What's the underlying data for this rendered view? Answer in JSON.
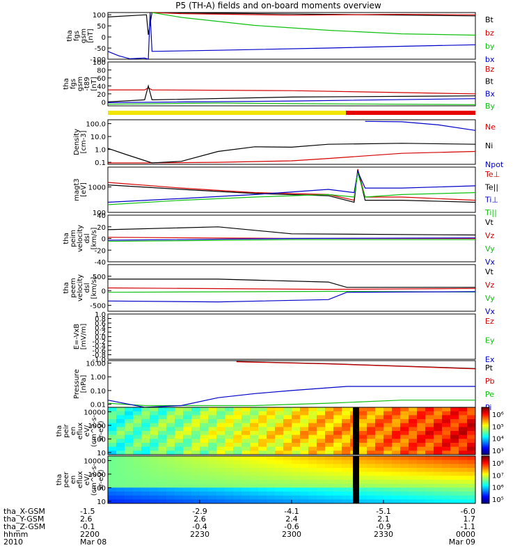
{
  "title": "P5 (TH-A) fields and on-board moments overview",
  "colors": {
    "red": "#d40000",
    "green": "#10c010",
    "blue": "#0000c8",
    "black": "#000000",
    "yellow": "#f2e600",
    "barRed": "#e60000"
  },
  "chart_data": [
    {
      "type": "line",
      "ylabel": [
        "tha",
        "fgs",
        "gsm",
        "[nT]"
      ],
      "ylim": [
        -100,
        110
      ],
      "yticks": [
        "100",
        "50",
        "0",
        "-50",
        "-100"
      ],
      "ytick_values": [
        100,
        50,
        0,
        -50,
        -100
      ],
      "series": [
        {
          "name": "Bt",
          "color": "#000000",
          "x": [
            0,
            0.105,
            0.11,
            0.12,
            1
          ],
          "values": [
            90,
            100,
            10,
            110,
            95
          ]
        },
        {
          "name": "bz",
          "color": "#d40000",
          "x": [
            0.12,
            0.2,
            0.5,
            0.8,
            1
          ],
          "values": [
            110,
            105,
            98,
            102,
            100
          ]
        },
        {
          "name": "by",
          "color": "#10c010",
          "x": [
            0.12,
            0.2,
            0.4,
            0.6,
            0.8,
            1
          ],
          "values": [
            110,
            88,
            52,
            30,
            14,
            8
          ]
        },
        {
          "name": "bx",
          "color": "#0000c8",
          "x": [
            0,
            0.03,
            0.06,
            0.1,
            0.11,
            0.115,
            0.12,
            0.3,
            0.6,
            0.8,
            1
          ],
          "values": [
            -65,
            -85,
            -98,
            -95,
            -100,
            110,
            -65,
            -60,
            -50,
            -42,
            -35
          ]
        }
      ]
    },
    {
      "type": "line",
      "ylabel": [
        "tha",
        "fgs",
        "gsm",
        "-t89",
        "[nT]"
      ],
      "ylim": [
        -10,
        100
      ],
      "yticks": [
        "100",
        "80",
        "60",
        "40",
        "20",
        "0"
      ],
      "ytick_values": [
        100,
        80,
        60,
        40,
        20,
        0
      ],
      "series": [
        {
          "name": "Bz",
          "color": "#d40000",
          "x": [
            0,
            0.1,
            0.11,
            0.12,
            0.5,
            1
          ],
          "values": [
            30,
            30,
            35,
            30,
            28,
            20
          ]
        },
        {
          "name": "Bt",
          "color": "#000000",
          "x": [
            0,
            0.1,
            0.11,
            0.12,
            0.5,
            1
          ],
          "values": [
            0,
            5,
            40,
            5,
            12,
            15
          ]
        },
        {
          "name": "Bx",
          "color": "#0000c8",
          "x": [
            0,
            0.5,
            1
          ],
          "values": [
            -2,
            2,
            8
          ]
        },
        {
          "name": "By",
          "color": "#10c010",
          "x": [
            0,
            0.3,
            0.6,
            1
          ],
          "values": [
            -6,
            -3,
            -5,
            -7
          ]
        }
      ]
    },
    {
      "type": "line",
      "ylabel": [
        "Density",
        "[cm-3]"
      ],
      "yscale": "log",
      "ylim": [
        0.07,
        200
      ],
      "yticks": [
        "100.0",
        "10.0",
        "1.0",
        "0.1"
      ],
      "ytick_values": [
        100,
        10,
        1,
        0.1
      ],
      "series": [
        {
          "name": "Ne",
          "color": "#d40000",
          "x": [
            0,
            0.1,
            0.3,
            0.5,
            0.6,
            0.8,
            1
          ],
          "values": [
            0.09,
            0.09,
            0.1,
            0.13,
            0.2,
            0.5,
            0.7
          ]
        },
        {
          "name": "Ni",
          "color": "#000000",
          "x": [
            0,
            0.05,
            0.12,
            0.2,
            0.3,
            0.4,
            0.5,
            0.6,
            0.8,
            1
          ],
          "values": [
            1.2,
            0.4,
            0.09,
            0.12,
            0.7,
            1.6,
            1.5,
            2.5,
            3.0,
            2.5
          ]
        },
        {
          "name": "Npot",
          "color": "#0000c8",
          "x": [
            0.7,
            0.8,
            0.9,
            1
          ],
          "values": [
            150,
            140,
            80,
            30
          ]
        }
      ]
    },
    {
      "type": "line",
      "ylabel": [
        "magt3",
        "[eV]"
      ],
      "yscale": "log",
      "ylim": [
        100,
        6000
      ],
      "yticks": [
        "1000",
        "100"
      ],
      "ytick_values": [
        1000,
        100
      ],
      "series": [
        {
          "name": "Te⊥",
          "color": "#d40000",
          "x": [
            0,
            0.2,
            0.4,
            0.6,
            0.67,
            0.68,
            0.7,
            0.8,
            1
          ],
          "values": [
            1500,
            900,
            600,
            500,
            300,
            5000,
            400,
            400,
            300
          ]
        },
        {
          "name": "Te||",
          "color": "#000000",
          "x": [
            0,
            0.2,
            0.4,
            0.6,
            0.67,
            0.68,
            0.7,
            0.8,
            1
          ],
          "values": [
            1200,
            800,
            550,
            450,
            250,
            4500,
            300,
            300,
            250
          ]
        },
        {
          "name": "Ti⊥",
          "color": "#0000c8",
          "x": [
            0,
            0.2,
            0.4,
            0.6,
            0.67,
            0.68,
            0.7,
            0.8,
            1
          ],
          "values": [
            250,
            350,
            500,
            800,
            600,
            4000,
            900,
            900,
            1100
          ]
        },
        {
          "name": "Ti||",
          "color": "#10c010",
          "x": [
            0,
            0.2,
            0.4,
            0.6,
            0.67,
            0.68,
            0.7,
            0.8,
            1
          ],
          "values": [
            200,
            300,
            400,
            500,
            400,
            3500,
            400,
            500,
            600
          ]
        }
      ]
    },
    {
      "type": "line",
      "ylabel": [
        "tha",
        "peim",
        "velocity",
        "dsl",
        "[km/s]"
      ],
      "ylim": [
        -40,
        40
      ],
      "yticks": [
        "40",
        "20",
        "0",
        "-20",
        "-40"
      ],
      "ytick_values": [
        40,
        20,
        0,
        -20,
        -40
      ],
      "series": [
        {
          "name": "Vt",
          "color": "#000000",
          "x": [
            0,
            0.3,
            0.5,
            1
          ],
          "values": [
            15,
            20,
            8,
            6
          ]
        },
        {
          "name": "Vz",
          "color": "#d40000",
          "x": [
            0,
            0.5,
            1
          ],
          "values": [
            2,
            0,
            0
          ]
        },
        {
          "name": "Vy",
          "color": "#10c010",
          "x": [
            0,
            0.5,
            1
          ],
          "values": [
            -5,
            -2,
            -2
          ]
        },
        {
          "name": "Vx",
          "color": "#0000c8",
          "x": [
            0,
            0.5,
            1
          ],
          "values": [
            -3,
            0,
            1
          ]
        }
      ]
    },
    {
      "type": "line",
      "ylabel": [
        "tha",
        "peem",
        "velocity",
        "dsl",
        "[km/s]"
      ],
      "ylim": [
        -700,
        900
      ],
      "yticks": [
        "500",
        "0",
        "-500"
      ],
      "ytick_values": [
        500,
        0,
        -500
      ],
      "series": [
        {
          "name": "Vt",
          "color": "#000000",
          "x": [
            0,
            0.3,
            0.6,
            0.65,
            1
          ],
          "values": [
            400,
            400,
            300,
            120,
            120
          ]
        },
        {
          "name": "Vz",
          "color": "#d40000",
          "x": [
            0,
            0.6,
            1
          ],
          "values": [
            100,
            50,
            80
          ]
        },
        {
          "name": "Vy",
          "color": "#10c010",
          "x": [
            0,
            0.6,
            1
          ],
          "values": [
            -50,
            -20,
            -40
          ]
        },
        {
          "name": "Vx",
          "color": "#0000c8",
          "x": [
            0,
            0.3,
            0.6,
            0.65,
            1
          ],
          "values": [
            -350,
            -380,
            -300,
            -50,
            -30
          ]
        }
      ]
    },
    {
      "type": "line",
      "ylabel": [
        "E=-VxB",
        "[mV/m]"
      ],
      "ylim": [
        -1.0,
        1.0
      ],
      "yticks": [
        "1.0",
        "0.8",
        "0.6",
        "0.4",
        "0.2",
        "0.0",
        "-0.2",
        "-0.4",
        "-0.6",
        "-0.8",
        "-1.0"
      ],
      "ytick_values": [
        1.0,
        0.8,
        0.6,
        0.4,
        0.2,
        0.0,
        -0.2,
        -0.4,
        -0.6,
        -0.8,
        -1.0
      ],
      "series": [
        {
          "name": "Ez",
          "color": "#d40000",
          "x": [],
          "values": []
        },
        {
          "name": "Ey",
          "color": "#10c010",
          "x": [],
          "values": []
        },
        {
          "name": "Ex",
          "color": "#0000c8",
          "x": [],
          "values": []
        }
      ]
    },
    {
      "type": "line",
      "ylabel": [
        "Pressure",
        "[nPa]"
      ],
      "yscale": "log",
      "ylim": [
        0.006,
        15
      ],
      "yticks": [
        "10.00",
        "1.00",
        "0.10",
        "0.01"
      ],
      "ytick_values": [
        10,
        1,
        0.1,
        0.01
      ],
      "series": [
        {
          "name": "Pt",
          "color": "#000000",
          "x": [
            0.35,
            0.6,
            0.8,
            1
          ],
          "values": [
            13,
            9,
            6,
            4
          ]
        },
        {
          "name": "Pb",
          "color": "#d40000",
          "x": [
            0.35,
            0.6,
            0.8,
            1
          ],
          "values": [
            12.5,
            8.7,
            5.8,
            3.8
          ]
        },
        {
          "name": "Pe",
          "color": "#10c010",
          "x": [
            0,
            0.1,
            0.4,
            0.6,
            0.8,
            1
          ],
          "values": [
            0.012,
            0.008,
            0.008,
            0.012,
            0.02,
            0.02
          ]
        },
        {
          "name": "Pi",
          "color": "#0000c8",
          "x": [
            0,
            0.1,
            0.2,
            0.3,
            0.4,
            0.5,
            0.65,
            1
          ],
          "values": [
            0.02,
            0.006,
            0.008,
            0.03,
            0.06,
            0.1,
            0.2,
            0.2
          ]
        }
      ]
    },
    {
      "type": "heatmap",
      "ylabel": [
        "tha",
        "peir",
        "en",
        "eflux",
        "eV/",
        "(cm^2-s-",
        "sr-eV)"
      ],
      "yscale": "log",
      "yticks": [
        "10000",
        "1000",
        "100",
        "10"
      ],
      "ytick_values": [
        10000,
        1000,
        100,
        10
      ],
      "colorbar_ticks": [
        "10⁶",
        "10⁵",
        "10⁴",
        "10³"
      ]
    },
    {
      "type": "heatmap",
      "ylabel": [
        "tha",
        "peer",
        "en",
        "eflux",
        "eV/",
        "(cm^2-s-",
        "sr-eV)"
      ],
      "yscale": "log",
      "yticks": [
        "10000",
        "1000",
        "100",
        "10"
      ],
      "ytick_values": [
        10000,
        1000,
        100,
        10
      ],
      "colorbar_ticks": [
        "10⁸",
        "10⁷",
        "10⁶",
        "10⁵"
      ]
    }
  ],
  "xaxis": {
    "rows": [
      {
        "label": "tha_X-GSM",
        "values": [
          "-1.5",
          "-2.9",
          "-4.1",
          "-5.1",
          "-6.0"
        ]
      },
      {
        "label": "tha_Y-GSM",
        "values": [
          "2.6",
          "2.6",
          "2.4",
          "2.1",
          "1.7"
        ]
      },
      {
        "label": "tha_Z-GSM",
        "values": [
          "-0.1",
          "-0.4",
          "-0.6",
          "-0.9",
          "-1.1"
        ]
      },
      {
        "label": "hhmm",
        "values": [
          "2200",
          "2230",
          "2300",
          "2330",
          "0000"
        ]
      },
      {
        "label": "2010",
        "values": [
          "Mar 08",
          "",
          "",
          "",
          "Mar 09"
        ]
      }
    ]
  }
}
